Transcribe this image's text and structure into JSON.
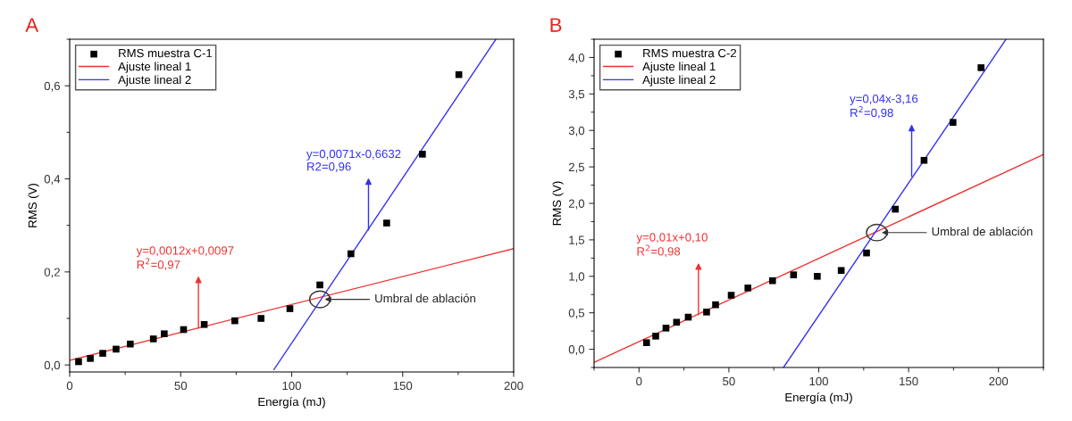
{
  "chart_data": [
    {
      "type": "scatter",
      "title": "A",
      "xlabel": "Energía (mJ)",
      "ylabel": "RMS (V)",
      "legend": "top left",
      "xlim": [
        0,
        200
      ],
      "xticks": [
        0,
        50,
        100,
        150,
        200
      ],
      "ylim": [
        -0.015,
        0.7
      ],
      "yticks": [
        {
          "value": 0.0,
          "label": "0,0"
        },
        {
          "value": 0.2,
          "label": "0,2"
        },
        {
          "value": 0.4,
          "label": "0,4"
        },
        {
          "value": 0.6,
          "label": "0,6"
        }
      ],
      "series": [
        {
          "name": "RMS muestra C-1",
          "marker": "square",
          "color": "#000000",
          "x": [
            4.0,
            9.3,
            14.9,
            20.9,
            27.3,
            37.7,
            42.6,
            51.3,
            60.6,
            74.4,
            86.2,
            99.2,
            112.7,
            126.7,
            142.8,
            158.9,
            175.3
          ],
          "values": [
            0.007,
            0.014,
            0.025,
            0.034,
            0.045,
            0.056,
            0.067,
            0.076,
            0.087,
            0.095,
            0.1,
            0.121,
            0.172,
            0.239,
            0.305,
            0.453,
            0.624
          ]
        },
        {
          "name": "Ajuste lineal 1",
          "type": "line",
          "color": "#ee3333",
          "x": [
            0,
            200
          ],
          "values": [
            0.01,
            0.25
          ]
        },
        {
          "name": "Ajuste lineal 2",
          "type": "line",
          "color": "#3333ee",
          "x": [
            92,
            192
          ],
          "values": [
            -0.01,
            0.7
          ]
        }
      ],
      "annotations": [
        {
          "text": "y=0,0012x+0,0097\nR$^{2}$=0,97",
          "x": 58,
          "y": 0.079
        },
        {
          "text": "y=0,0071x-0,6632\nR2=0,96",
          "x": 134.6,
          "y": 0.29
        },
        {
          "text": "Umbral de ablación",
          "x": 112.7,
          "y": 0.141
        }
      ]
    },
    {
      "type": "scatter",
      "title": "B",
      "xlabel": "Energía (mJ)",
      "ylabel": "RMS (V)",
      "legend": "top left",
      "xlim": [
        -25,
        225
      ],
      "xticks": [
        0,
        50,
        100,
        150,
        200
      ],
      "ylim": [
        -0.25,
        4.25
      ],
      "yticks": [
        {
          "value": 0.0,
          "label": "0,0"
        },
        {
          "value": 0.5,
          "label": "0,5"
        },
        {
          "value": 1.0,
          "label": "1,0"
        },
        {
          "value": 1.5,
          "label": "1,5"
        },
        {
          "value": 2.0,
          "label": "2,0"
        },
        {
          "value": 2.5,
          "label": "2,5"
        },
        {
          "value": 3.0,
          "label": "3,0"
        },
        {
          "value": 3.5,
          "label": "3,5"
        },
        {
          "value": 4.0,
          "label": "4,0"
        }
      ],
      "series": [
        {
          "name": "RMS muestra C-2",
          "marker": "square",
          "color": "#000000",
          "x": [
            4.2,
            9.3,
            15.0,
            20.9,
            27.4,
            37.6,
            42.6,
            51.3,
            60.6,
            74.3,
            86.0,
            99.2,
            112.5,
            126.6,
            142.6,
            158.6,
            174.7,
            190.3
          ],
          "values": [
            0.09,
            0.18,
            0.29,
            0.37,
            0.44,
            0.51,
            0.61,
            0.74,
            0.84,
            0.94,
            1.02,
            1.0,
            1.08,
            1.32,
            1.92,
            2.59,
            3.11,
            3.86
          ]
        },
        {
          "name": "Ajuste lineal 1",
          "type": "line",
          "color": "#ee3333",
          "x": [
            -25,
            225
          ],
          "values": [
            -0.18,
            2.67
          ]
        },
        {
          "name": "Ajuste lineal 2",
          "type": "line",
          "color": "#3333ee",
          "x": [
            80.4,
            204.2
          ],
          "values": [
            -0.25,
            4.25
          ]
        }
      ],
      "annotations": [
        {
          "text": "y=0,01x+0,10\nR$^{2}$=0,98",
          "x": 33.1,
          "y": 0.47
        },
        {
          "text": "y=0,04x-3,16\nR$^{2}$=0,98",
          "x": 151.7,
          "y": 2.37
        },
        {
          "text": "Umbral de ablación",
          "x": 132.3,
          "y": 1.6
        }
      ]
    }
  ]
}
